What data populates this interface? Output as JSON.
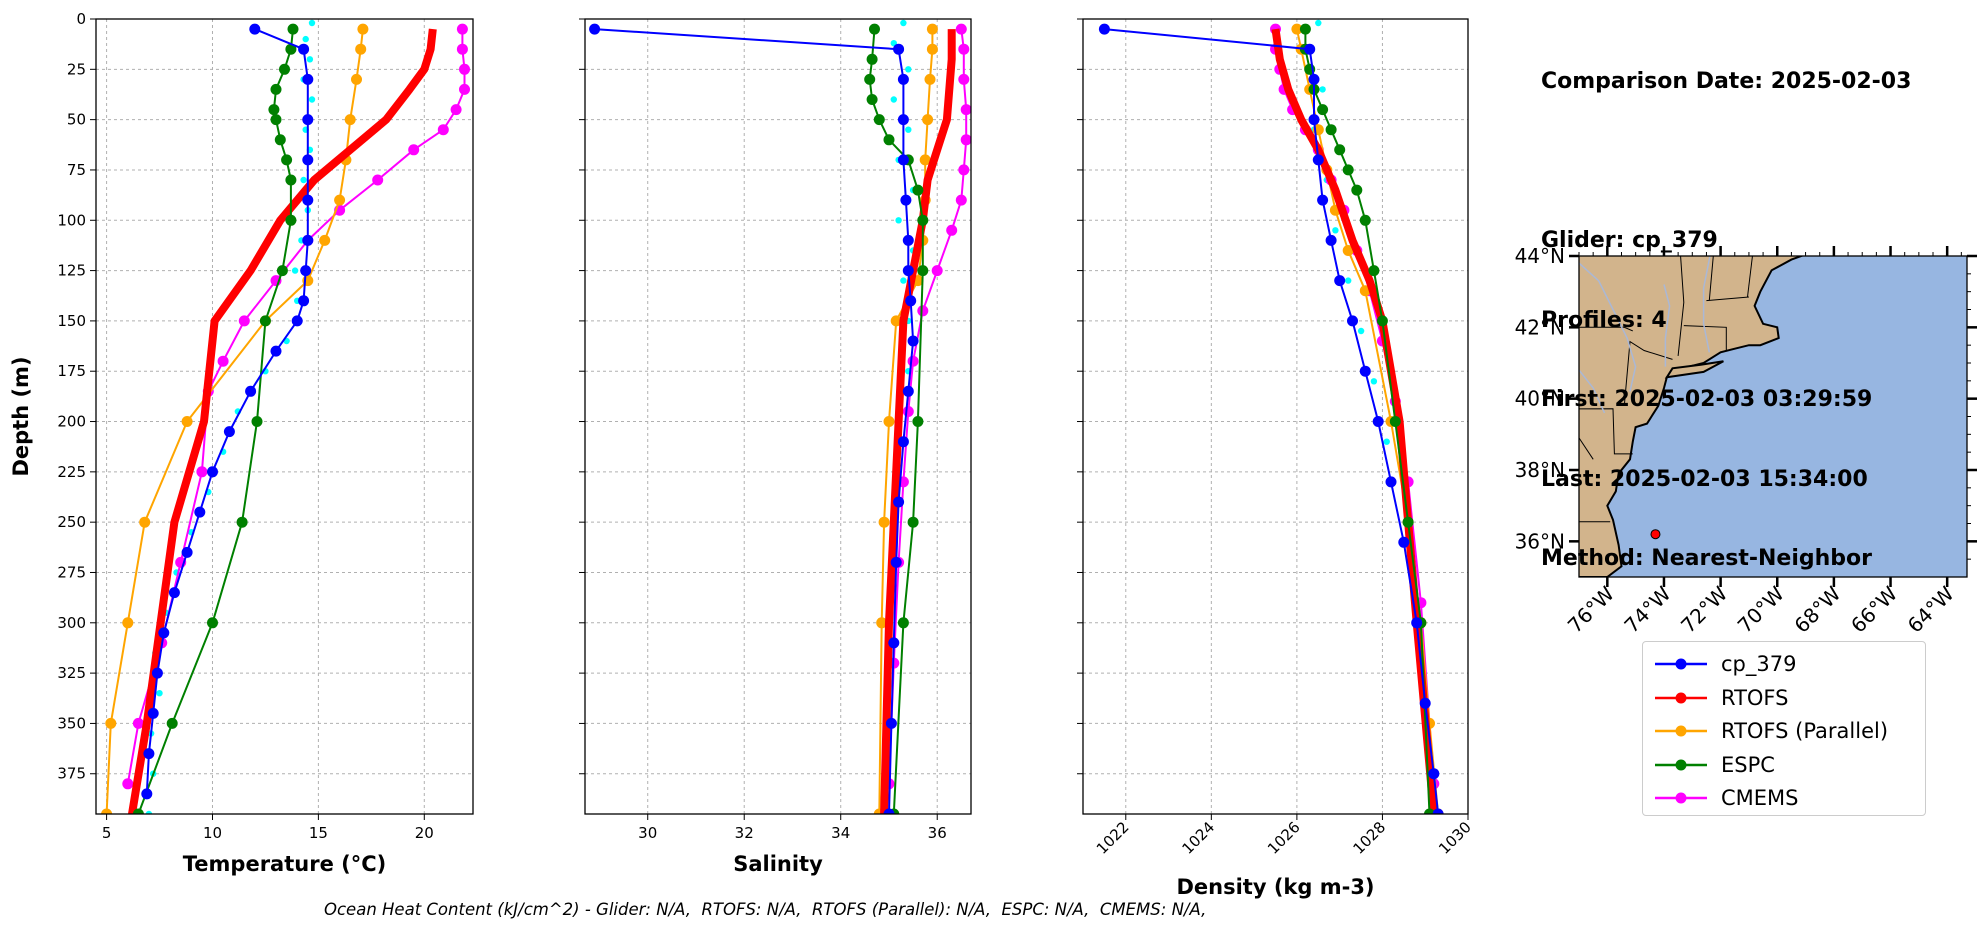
{
  "chart_data": [
    {
      "type": "line",
      "xlabel": "Temperature (°C)",
      "ylabel": "Depth (m)",
      "xlim": [
        4.5,
        22.3
      ],
      "ylim": [
        395,
        0
      ],
      "xticks": [
        5,
        10,
        15,
        20
      ],
      "yticks": [
        0,
        25,
        50,
        75,
        100,
        125,
        150,
        175,
        200,
        225,
        250,
        275,
        300,
        325,
        350,
        375
      ],
      "grid": true,
      "series": [
        {
          "name": "cp_379",
          "color": "#0000ff",
          "x": [
            12.0,
            14.3,
            14.5,
            14.5,
            14.5,
            14.5,
            14.5,
            14.4,
            14.3,
            14.0,
            13.0,
            11.8,
            10.8,
            10.0,
            9.4,
            8.8,
            8.2,
            7.7,
            7.4,
            7.2,
            7.0,
            6.9
          ],
          "y": [
            5,
            15,
            30,
            50,
            70,
            90,
            110,
            125,
            140,
            150,
            165,
            185,
            205,
            225,
            245,
            265,
            285,
            305,
            325,
            345,
            365,
            385
          ]
        },
        {
          "name": "cp_379 (raw)",
          "color": "#00ffff",
          "x": [
            14.7,
            14.4,
            14.6,
            14.3,
            14.7,
            14.4,
            14.6,
            14.3,
            14.5,
            14.2,
            13.9,
            14.0,
            13.5,
            12.5,
            11.2,
            10.5,
            9.8,
            9.0,
            8.3,
            7.8,
            7.3,
            7.5,
            7.1,
            7.2,
            7.0
          ],
          "y": [
            2,
            10,
            20,
            30,
            40,
            55,
            65,
            80,
            95,
            110,
            125,
            140,
            160,
            175,
            195,
            215,
            235,
            255,
            275,
            295,
            315,
            335,
            355,
            375,
            395
          ]
        },
        {
          "name": "RTOFS",
          "color": "#ff0000",
          "x": [
            20.4,
            20.3,
            20.0,
            19.3,
            18.2,
            16.5,
            14.8,
            13.2,
            11.8,
            10.1,
            9.6,
            8.2,
            6.9,
            6.2
          ],
          "y": [
            5,
            15,
            25,
            35,
            50,
            65,
            80,
            100,
            125,
            150,
            200,
            250,
            350,
            395
          ]
        },
        {
          "name": "RTOFS (Parallel)",
          "color": "#ffa500",
          "x": [
            17.1,
            17.0,
            16.8,
            16.5,
            16.3,
            16.0,
            15.3,
            14.5,
            12.5,
            8.8,
            6.8,
            6.0,
            5.2,
            5.0
          ],
          "y": [
            5,
            15,
            30,
            50,
            70,
            90,
            110,
            130,
            150,
            200,
            250,
            300,
            350,
            395
          ]
        },
        {
          "name": "ESPC",
          "color": "#008000",
          "x": [
            13.8,
            13.7,
            13.4,
            13.0,
            12.9,
            13.0,
            13.2,
            13.5,
            13.7,
            13.7,
            13.3,
            12.5,
            12.1,
            11.4,
            10.0,
            8.1,
            6.5
          ],
          "y": [
            5,
            15,
            25,
            35,
            45,
            50,
            60,
            70,
            80,
            100,
            125,
            150,
            200,
            250,
            300,
            350,
            395
          ]
        },
        {
          "name": "CMEMS",
          "color": "#ff00ff",
          "x": [
            21.8,
            21.8,
            21.9,
            21.9,
            21.5,
            20.9,
            19.5,
            17.8,
            16.0,
            14.5,
            13.0,
            11.5,
            10.5,
            9.8,
            9.5,
            8.5,
            7.6,
            6.5,
            6.0
          ],
          "y": [
            5,
            15,
            25,
            35,
            45,
            55,
            65,
            80,
            95,
            110,
            130,
            150,
            170,
            185,
            225,
            270,
            310,
            350,
            380
          ]
        }
      ]
    },
    {
      "type": "line",
      "xlabel": "Salinity",
      "xlim": [
        28.7,
        36.7
      ],
      "ylim": [
        395,
        0
      ],
      "xticks": [
        30,
        32,
        34,
        36
      ],
      "yticks": [
        0,
        25,
        50,
        75,
        100,
        125,
        150,
        175,
        200,
        225,
        250,
        275,
        300,
        325,
        350,
        375
      ],
      "grid": true,
      "series": [
        {
          "name": "cp_379",
          "color": "#0000ff",
          "x": [
            28.9,
            35.2,
            35.3,
            35.3,
            35.3,
            35.35,
            35.4,
            35.4,
            35.45,
            35.5,
            35.4,
            35.3,
            35.2,
            35.15,
            35.1,
            35.05,
            35.0
          ],
          "y": [
            5,
            15,
            30,
            50,
            70,
            90,
            110,
            125,
            140,
            160,
            185,
            210,
            240,
            270,
            310,
            350,
            395
          ]
        },
        {
          "name": "cp_379 (raw)",
          "color": "#00ffff",
          "x": [
            35.3,
            35.1,
            35.4,
            35.1,
            35.4,
            35.2,
            35.5,
            35.2,
            35.5,
            35.3,
            35.4,
            35.4,
            35.2,
            35.1,
            35.0,
            35.0
          ],
          "y": [
            2,
            12,
            25,
            40,
            55,
            70,
            85,
            100,
            115,
            130,
            150,
            175,
            210,
            260,
            320,
            380
          ]
        },
        {
          "name": "RTOFS",
          "color": "#ff0000",
          "x": [
            36.3,
            36.3,
            36.25,
            36.2,
            36.0,
            35.8,
            35.7,
            35.5,
            35.3,
            35.2,
            35.0,
            34.9
          ],
          "y": [
            5,
            20,
            35,
            50,
            65,
            80,
            100,
            125,
            150,
            200,
            300,
            395
          ]
        },
        {
          "name": "RTOFS (Parallel)",
          "color": "#ffa500",
          "x": [
            35.9,
            35.9,
            35.85,
            35.8,
            35.75,
            35.75,
            35.7,
            35.6,
            35.15,
            35.0,
            34.9,
            34.85,
            34.8
          ],
          "y": [
            5,
            15,
            30,
            50,
            70,
            90,
            110,
            130,
            150,
            200,
            250,
            300,
            395
          ]
        },
        {
          "name": "ESPC",
          "color": "#008000",
          "x": [
            34.7,
            34.65,
            34.6,
            34.65,
            34.8,
            35.0,
            35.4,
            35.6,
            35.7,
            35.7,
            35.6,
            35.5,
            35.3,
            35.1
          ],
          "y": [
            5,
            20,
            30,
            40,
            50,
            60,
            70,
            85,
            100,
            125,
            200,
            250,
            300,
            395
          ]
        },
        {
          "name": "CMEMS",
          "color": "#ff00ff",
          "x": [
            36.5,
            36.55,
            36.55,
            36.6,
            36.6,
            36.55,
            36.5,
            36.3,
            36.0,
            35.7,
            35.5,
            35.4,
            35.3,
            35.2,
            35.1,
            35.0
          ],
          "y": [
            5,
            15,
            30,
            45,
            60,
            75,
            90,
            105,
            125,
            145,
            170,
            195,
            230,
            270,
            320,
            380
          ]
        }
      ]
    },
    {
      "type": "line",
      "xlabel": "Density (kg m-3)",
      "xlim": [
        1021,
        1030
      ],
      "ylim": [
        395,
        0
      ],
      "xticks": [
        1022,
        1024,
        1026,
        1028,
        1030
      ],
      "yticks": [
        0,
        25,
        50,
        75,
        100,
        125,
        150,
        175,
        200,
        225,
        250,
        275,
        300,
        325,
        350,
        375
      ],
      "grid": true,
      "series": [
        {
          "name": "cp_379",
          "color": "#0000ff",
          "x": [
            1021.5,
            1026.3,
            1026.4,
            1026.4,
            1026.5,
            1026.6,
            1026.8,
            1027.0,
            1027.3,
            1027.6,
            1027.9,
            1028.2,
            1028.5,
            1028.8,
            1029.0,
            1029.2,
            1029.3
          ],
          "y": [
            5,
            15,
            30,
            50,
            70,
            90,
            110,
            130,
            150,
            175,
            200,
            230,
            260,
            300,
            340,
            375,
            395
          ]
        },
        {
          "name": "cp_379 (raw)",
          "color": "#00ffff",
          "x": [
            1026.5,
            1026.3,
            1026.6,
            1026.4,
            1026.7,
            1026.9,
            1027.2,
            1027.5,
            1027.8,
            1028.1,
            1028.5,
            1028.9,
            1029.2
          ],
          "y": [
            2,
            15,
            35,
            55,
            80,
            105,
            130,
            155,
            180,
            210,
            260,
            320,
            385
          ]
        },
        {
          "name": "RTOFS",
          "color": "#ff0000",
          "x": [
            1025.5,
            1025.6,
            1025.8,
            1026.1,
            1026.5,
            1026.9,
            1027.3,
            1027.7,
            1028.0,
            1028.4,
            1028.8,
            1029.2
          ],
          "y": [
            5,
            20,
            35,
            50,
            65,
            85,
            110,
            130,
            150,
            200,
            300,
            395
          ]
        },
        {
          "name": "RTOFS (Parallel)",
          "color": "#ffa500",
          "x": [
            1026.0,
            1026.1,
            1026.3,
            1026.5,
            1026.7,
            1026.9,
            1027.2,
            1027.6,
            1028.2,
            1028.6,
            1028.9,
            1029.1,
            1029.3
          ],
          "y": [
            5,
            15,
            35,
            55,
            75,
            95,
            115,
            135,
            200,
            250,
            300,
            350,
            395
          ]
        },
        {
          "name": "ESPC",
          "color": "#008000",
          "x": [
            1026.2,
            1026.2,
            1026.3,
            1026.4,
            1026.6,
            1026.8,
            1027.0,
            1027.2,
            1027.4,
            1027.6,
            1027.8,
            1028.0,
            1028.3,
            1028.6,
            1028.9,
            1029.1
          ],
          "y": [
            5,
            15,
            25,
            35,
            45,
            55,
            65,
            75,
            85,
            100,
            125,
            150,
            200,
            250,
            300,
            395
          ]
        },
        {
          "name": "CMEMS",
          "color": "#ff00ff",
          "x": [
            1025.5,
            1025.5,
            1025.6,
            1025.7,
            1025.9,
            1026.2,
            1026.5,
            1026.8,
            1027.1,
            1027.4,
            1027.7,
            1028.0,
            1028.3,
            1028.6,
            1028.9,
            1029.2
          ],
          "y": [
            5,
            15,
            25,
            35,
            45,
            55,
            65,
            80,
            95,
            115,
            135,
            160,
            190,
            230,
            290,
            380
          ]
        }
      ]
    }
  ],
  "info": {
    "date": "Comparison Date: 2025-02-03",
    "glider": "Glider: cp_379",
    "profiles": "Profiles: 4",
    "first": "First: 2025-02-03 03:29:59",
    "last": "Last: 2025-02-03 15:34:00",
    "method": "Method: Nearest-Neighbor"
  },
  "map": {
    "lat_ticks": [
      "44°N",
      "42°N",
      "40°N",
      "38°N",
      "36°N"
    ],
    "lon_ticks": [
      "76°W",
      "74°W",
      "72°W",
      "70°W",
      "68°W",
      "66°W",
      "64°W"
    ],
    "land_color": "#d2b48c",
    "ocean_color": "#97b6e1",
    "marker": {
      "lon": -74.3,
      "lat": 36.2,
      "color": "#ff0000"
    }
  },
  "legend": [
    {
      "label": "cp_379",
      "color": "#0000ff"
    },
    {
      "label": "RTOFS",
      "color": "#ff0000"
    },
    {
      "label": "RTOFS (Parallel)",
      "color": "#ffa500"
    },
    {
      "label": "ESPC",
      "color": "#008000"
    },
    {
      "label": "CMEMS",
      "color": "#ff00ff"
    }
  ],
  "footer": "Ocean Heat Content (kJ/cm^2) - Glider: N/A,  RTOFS: N/A,  RTOFS (Parallel): N/A,  ESPC: N/A,  CMEMS: N/A,"
}
